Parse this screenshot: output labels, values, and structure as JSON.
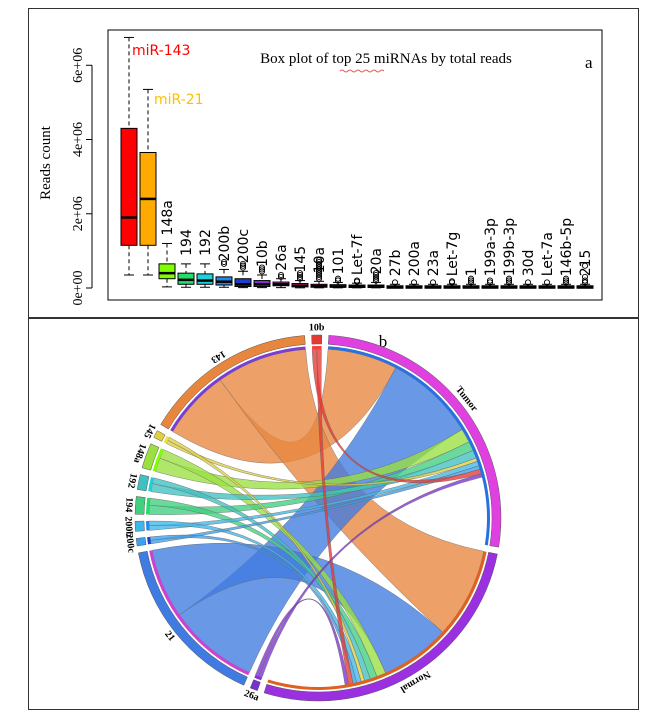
{
  "chart_data": [
    {
      "type": "box",
      "panel_letter": "a",
      "title": "Box plot of top 25 miRNAs by total reads",
      "ylabel": "Reads count",
      "xlabel": "",
      "ylim": [
        0,
        6600000
      ],
      "yticks": [
        0,
        2000000,
        4000000,
        6000000
      ],
      "ytick_labels": [
        "0e+00",
        "2e+06",
        "4e+06",
        "6e+06"
      ],
      "series": [
        {
          "name": "miR-143",
          "label_color": "#ff0000",
          "color": "#ff0000",
          "min": 350000,
          "q1": 1150000,
          "median": 1900000,
          "q3": 4300000,
          "max": 6750000,
          "outliers": []
        },
        {
          "name": "miR-21",
          "label_color": "#ffc000",
          "color": "#ffaa00",
          "min": 350000,
          "q1": 1150000,
          "median": 2400000,
          "q3": 3650000,
          "max": 5350000,
          "outliers": []
        },
        {
          "name": "148a",
          "color": "#7fff00",
          "min": 30000,
          "q1": 250000,
          "median": 400000,
          "q3": 650000,
          "max": 1200000,
          "outliers": []
        },
        {
          "name": "194",
          "color": "#22dd66",
          "min": 20000,
          "q1": 100000,
          "median": 220000,
          "q3": 400000,
          "max": 650000,
          "outliers": []
        },
        {
          "name": "192",
          "color": "#20d0d8",
          "min": 20000,
          "q1": 100000,
          "median": 200000,
          "q3": 380000,
          "max": 650000,
          "outliers": []
        },
        {
          "name": "200b",
          "color": "#2288ee",
          "min": 20000,
          "q1": 80000,
          "median": 170000,
          "q3": 300000,
          "max": 500000,
          "outliers": [
            700000,
            650000
          ]
        },
        {
          "name": "200c",
          "color": "#1a3fcc",
          "min": 10000,
          "q1": 40000,
          "median": 100000,
          "q3": 250000,
          "max": 450000,
          "outliers": [
            650000,
            600000,
            550000
          ]
        },
        {
          "name": "10b",
          "color": "#8a2be2",
          "min": 10000,
          "q1": 40000,
          "median": 100000,
          "q3": 200000,
          "max": 350000,
          "outliers": [
            550000,
            500000,
            450000
          ]
        },
        {
          "name": "26a",
          "color": "#cc44cc",
          "min": 10000,
          "q1": 60000,
          "median": 100000,
          "q3": 160000,
          "max": 250000,
          "outliers": [
            350000,
            300000
          ]
        },
        {
          "name": "145",
          "color": "#ff1493",
          "min": 5000,
          "q1": 30000,
          "median": 60000,
          "q3": 120000,
          "max": 200000,
          "outliers": [
            400000,
            350000,
            300000,
            250000
          ]
        },
        {
          "name": "10a",
          "color": "#ff1493",
          "min": 5000,
          "q1": 20000,
          "median": 50000,
          "q3": 100000,
          "max": 180000,
          "outliers": [
            750000,
            700000,
            650000,
            600000,
            550000,
            500000,
            450000,
            400000,
            350000,
            300000,
            250000
          ]
        },
        {
          "name": "101",
          "color": "#ff1493",
          "min": 5000,
          "q1": 20000,
          "median": 40000,
          "q3": 90000,
          "max": 150000,
          "outliers": [
            250000,
            200000
          ]
        },
        {
          "name": "Let-7f",
          "color": "#ff1493",
          "min": 5000,
          "q1": 20000,
          "median": 40000,
          "q3": 80000,
          "max": 130000,
          "outliers": [
            200000,
            170000
          ]
        },
        {
          "name": "20a",
          "color": "#ff1493",
          "min": 5000,
          "q1": 20000,
          "median": 40000,
          "q3": 80000,
          "max": 150000,
          "outliers": [
            400000,
            350000,
            300000,
            250000,
            200000
          ]
        },
        {
          "name": "27b",
          "color": "#ff1493",
          "min": 5000,
          "q1": 15000,
          "median": 30000,
          "q3": 60000,
          "max": 100000,
          "outliers": [
            150000
          ]
        },
        {
          "name": "200a",
          "color": "#ff1493",
          "min": 5000,
          "q1": 15000,
          "median": 30000,
          "q3": 60000,
          "max": 100000,
          "outliers": [
            150000
          ]
        },
        {
          "name": "23a",
          "color": "#ff1493",
          "min": 5000,
          "q1": 15000,
          "median": 30000,
          "q3": 60000,
          "max": 100000,
          "outliers": [
            150000
          ]
        },
        {
          "name": "Let-7g",
          "color": "#ff1493",
          "min": 5000,
          "q1": 15000,
          "median": 30000,
          "q3": 60000,
          "max": 100000,
          "outliers": [
            180000,
            150000
          ]
        },
        {
          "name": "1",
          "color": "#ff1493",
          "min": 5000,
          "q1": 15000,
          "median": 30000,
          "q3": 60000,
          "max": 100000,
          "outliers": [
            250000,
            200000,
            150000
          ]
        },
        {
          "name": "199a-3p",
          "color": "#ff1493",
          "min": 5000,
          "q1": 15000,
          "median": 30000,
          "q3": 60000,
          "max": 100000,
          "outliers": [
            200000,
            150000
          ]
        },
        {
          "name": "199b-3p",
          "color": "#ff1493",
          "min": 5000,
          "q1": 15000,
          "median": 30000,
          "q3": 60000,
          "max": 100000,
          "outliers": [
            250000,
            200000,
            150000
          ]
        },
        {
          "name": "30d",
          "color": "#ff1493",
          "min": 5000,
          "q1": 15000,
          "median": 30000,
          "q3": 60000,
          "max": 100000,
          "outliers": [
            150000
          ]
        },
        {
          "name": "Let-7a",
          "color": "#ff1493",
          "min": 5000,
          "q1": 15000,
          "median": 30000,
          "q3": 60000,
          "max": 100000,
          "outliers": [
            150000
          ]
        },
        {
          "name": "146b-5p",
          "color": "#ff1493",
          "min": 5000,
          "q1": 15000,
          "median": 30000,
          "q3": 60000,
          "max": 100000,
          "outliers": [
            250000,
            200000,
            150000
          ]
        },
        {
          "name": "215",
          "color": "#ff1493",
          "min": 5000,
          "q1": 15000,
          "median": 30000,
          "q3": 60000,
          "max": 100000,
          "outliers": [
            600000,
            300000,
            200000,
            150000
          ]
        }
      ]
    },
    {
      "type": "chord",
      "panel_letter": "b",
      "sectors": [
        {
          "name": "10b",
          "size": 0.4,
          "outer": "#e53935",
          "inner": "#ff3b3b"
        },
        {
          "name": "Tumor",
          "size": 12,
          "outer": "#e040e0",
          "inner": "#2a70e0"
        },
        {
          "name": "Normal",
          "size": 12,
          "outer": "#9b30e0",
          "inner": "#e06020"
        },
        {
          "name": "26a",
          "size": 0.3,
          "outer": "#7b30d0",
          "inner": "#8a2be2"
        },
        {
          "name": "21",
          "size": 6.9,
          "outer": "#3f7be0",
          "inner": "#d040d0"
        },
        {
          "name": "200c",
          "size": 0.3,
          "outer": "#3aa0f0",
          "inner": "#1a3fcc"
        },
        {
          "name": "200b",
          "size": 0.4,
          "outer": "#3fb7e8",
          "inner": "#2288ee"
        },
        {
          "name": "194",
          "size": 0.7,
          "outer": "#40d080",
          "inner": "#22dd66"
        },
        {
          "name": "192",
          "size": 0.6,
          "outer": "#40c0c0",
          "inner": "#20d0d8"
        },
        {
          "name": "148a",
          "size": 1.0,
          "outer": "#9ae040",
          "inner": "#7fff00"
        },
        {
          "name": "145",
          "size": 0.3,
          "outer": "#e0d040",
          "inner": "#f0e040"
        },
        {
          "name": "143",
          "size": 6.9,
          "outer": "#e8863d",
          "inner": "#7b3fd0"
        }
      ],
      "links": [
        {
          "from": "143",
          "to": "Tumor",
          "value": 3.0
        },
        {
          "from": "143",
          "to": "Normal",
          "value": 3.9
        },
        {
          "from": "21",
          "to": "Tumor",
          "value": 3.9
        },
        {
          "from": "21",
          "to": "Normal",
          "value": 3.0
        },
        {
          "from": "148a",
          "to": "Tumor",
          "value": 0.6
        },
        {
          "from": "148a",
          "to": "Normal",
          "value": 0.4
        },
        {
          "from": "194",
          "to": "Tumor",
          "value": 0.4
        },
        {
          "from": "194",
          "to": "Normal",
          "value": 0.3
        },
        {
          "from": "192",
          "to": "Tumor",
          "value": 0.35
        },
        {
          "from": "192",
          "to": "Normal",
          "value": 0.25
        },
        {
          "from": "145",
          "to": "Tumor",
          "value": 0.15
        },
        {
          "from": "145",
          "to": "Normal",
          "value": 0.15
        },
        {
          "from": "200b",
          "to": "Tumor",
          "value": 0.2
        },
        {
          "from": "200b",
          "to": "Normal",
          "value": 0.2
        },
        {
          "from": "200c",
          "to": "Tumor",
          "value": 0.15
        },
        {
          "from": "200c",
          "to": "Normal",
          "value": 0.15
        },
        {
          "from": "10b",
          "to": "Tumor",
          "value": 0.2
        },
        {
          "from": "10b",
          "to": "Normal",
          "value": 0.2
        },
        {
          "from": "26a",
          "to": "Tumor",
          "value": 0.15
        },
        {
          "from": "26a",
          "to": "Normal",
          "value": 0.15
        }
      ]
    }
  ]
}
